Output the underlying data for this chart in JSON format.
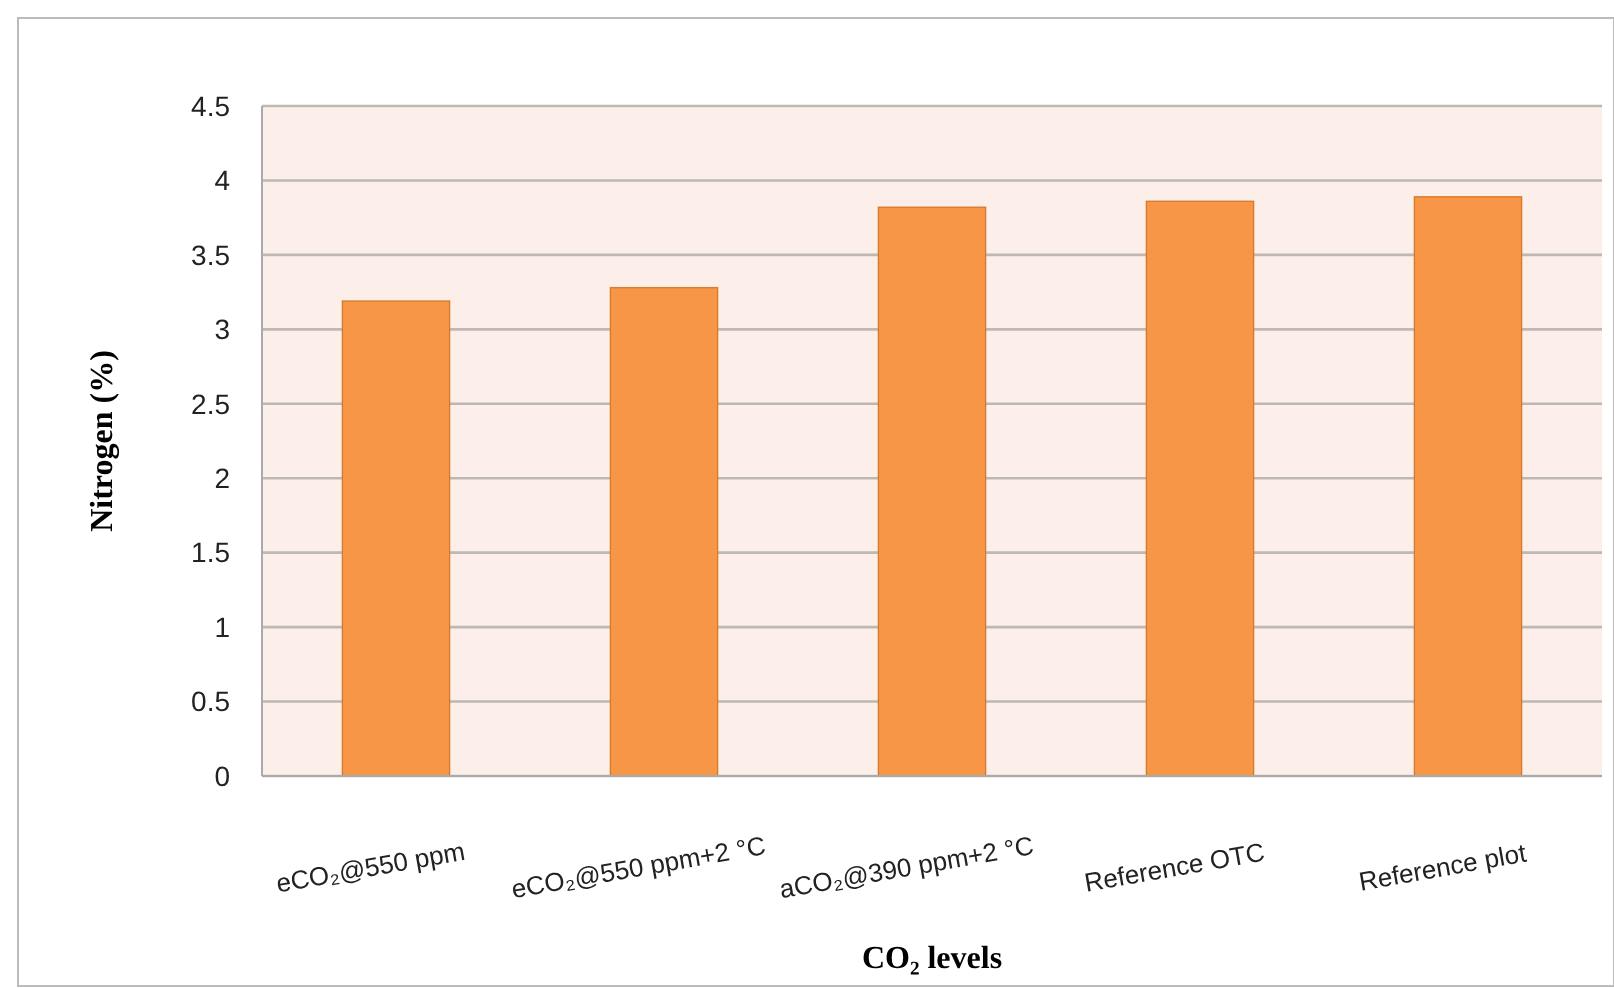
{
  "chart_data": {
    "type": "bar",
    "xlabel": "CO₂ levels",
    "ylabel": "Nitrogen (%)",
    "categories": [
      "eCO₂@550 ppm",
      "eCO₂@550 ppm+2 °C",
      "aCO₂@390 ppm+2 °C",
      "Reference OTC",
      "Reference plot"
    ],
    "values": [
      3.19,
      3.28,
      3.82,
      3.86,
      3.89
    ],
    "color": "#f79646",
    "ylim": [
      0,
      4.5
    ],
    "yticks": [
      0,
      0.5,
      1,
      1.5,
      2,
      2.5,
      3,
      3.5,
      4,
      4.5
    ],
    "grid": "y"
  }
}
